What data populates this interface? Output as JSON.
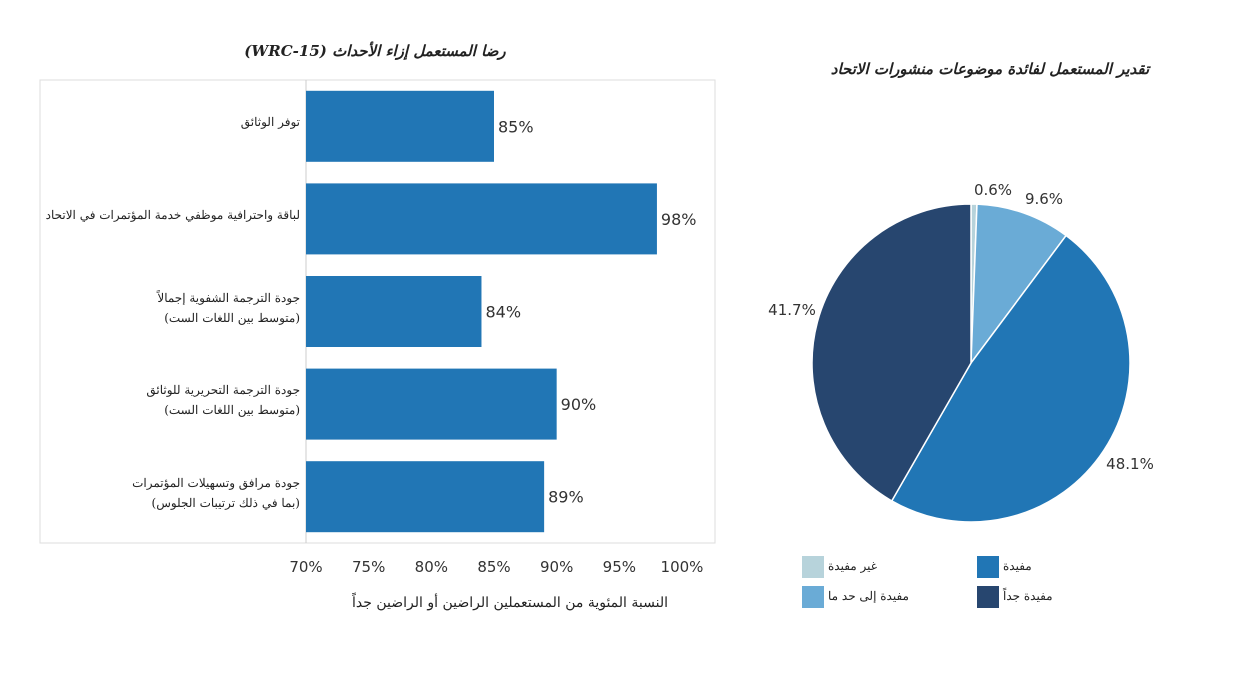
{
  "chart_data": [
    {
      "type": "bar",
      "orientation": "horizontal",
      "title": "رضا المستعمل إزاء الأحداث (WRC-15)",
      "xlabel": "النسبة المئوية من المستعملين الراضين أو الراضين جداً",
      "ylabel": "",
      "xlim": [
        70,
        100
      ],
      "x_ticks": [
        "70%",
        "75%",
        "80%",
        "85%",
        "90%",
        "95%",
        "100%"
      ],
      "categories": [
        [
          "توفر الوثائق"
        ],
        [
          "لباقة واحترافية موظفي خدمة المؤتمرات في الاتحاد"
        ],
        [
          "جودة الترجمة الشفوية إجمالاً",
          "(متوسط بين اللغات الست)"
        ],
        [
          "جودة الترجمة التحريرية للوثائق",
          "(متوسط بين اللغات الست)"
        ],
        [
          "جودة مرافق وتسهيلات المؤتمرات",
          "(بما في ذلك ترتيبات الجلوس)"
        ]
      ],
      "values": [
        85,
        98,
        84,
        90,
        89
      ],
      "value_labels": [
        "85%",
        "98%",
        "84%",
        "90%",
        "89%"
      ],
      "color": "#2176b5"
    },
    {
      "type": "pie",
      "title": "تقدير المستعمل لفائدة موضوعات منشورات الاتحاد",
      "slices": [
        {
          "name": "غير مفيدة",
          "value": 0.6,
          "label": "0.6%",
          "color": "#b7d3db"
        },
        {
          "name": "مفيدة إلى حد ما",
          "value": 9.6,
          "label": "9.6%",
          "color": "#6aabd6"
        },
        {
          "name": "مفيدة",
          "value": 48.1,
          "label": "48.1%",
          "color": "#2176b5"
        },
        {
          "name": "مفيدة جداً",
          "value": 41.7,
          "label": "41.7%",
          "color": "#27466f"
        }
      ],
      "legend_placement": "bottom"
    }
  ]
}
